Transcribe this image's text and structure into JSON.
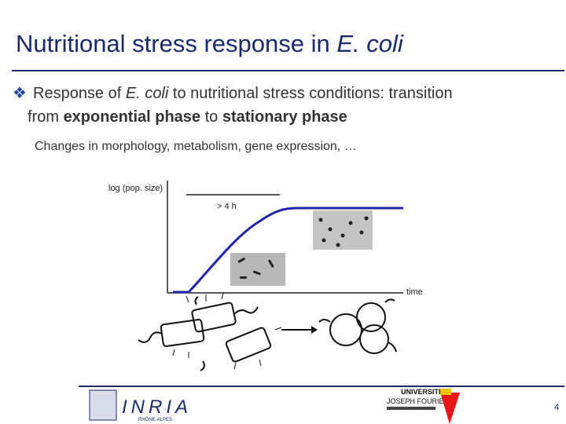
{
  "title": {
    "text": "Nutritional stress response in ",
    "italic": "E. coli"
  },
  "bullet": {
    "parts": [
      "Response of ",
      "E. coli",
      " to nutritional stress conditions: transition",
      "from ",
      "exponential phase",
      " to ",
      "stationary phase"
    ]
  },
  "subtext": "Changes in morphology, metabolism, gene expression, …",
  "diagram": {
    "y_label": "log (pop. size)",
    "duration": "> 4 h",
    "x_label": "time"
  },
  "footer": {
    "logo": "INRIA",
    "logo_sub": "RHÔNE-ALPES",
    "university": [
      "UNIVERSITE",
      "JOSEPH FOURIER"
    ],
    "page": "4"
  }
}
